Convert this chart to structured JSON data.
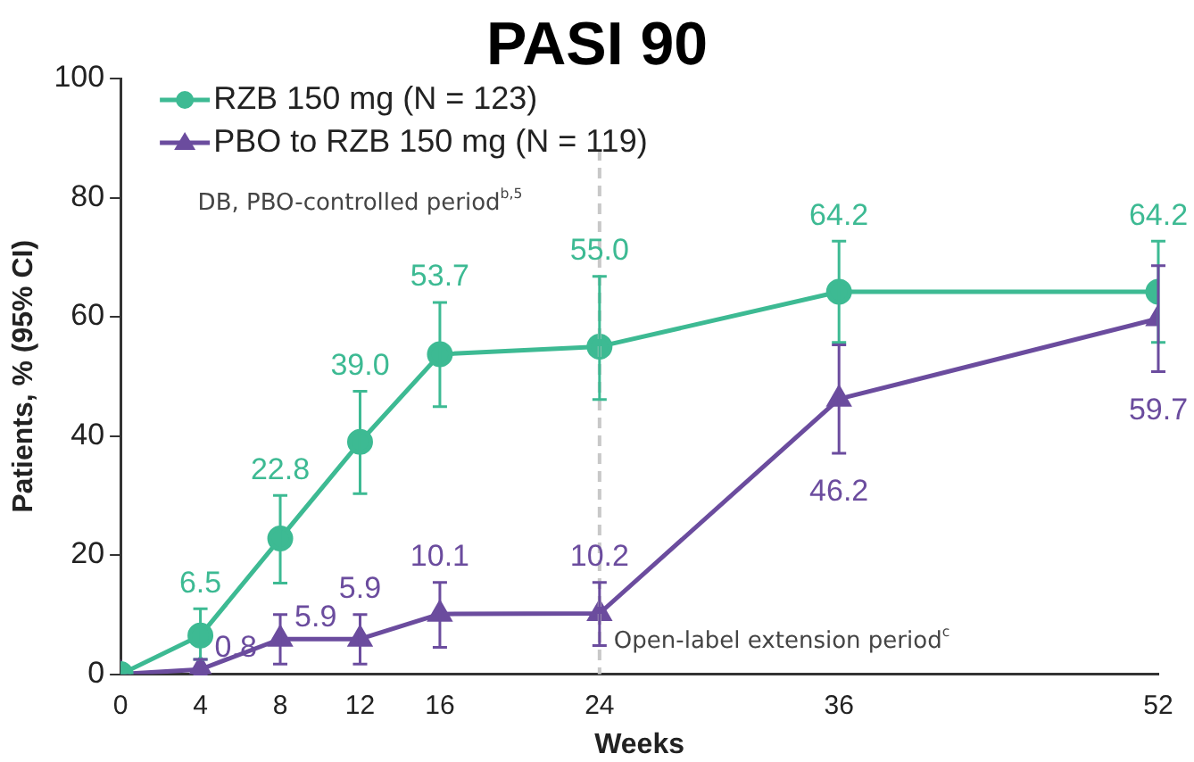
{
  "chart_data": {
    "type": "line",
    "title": "PASI 90",
    "xlabel": "Weeks",
    "ylabel": "Patients, % (95% CI)",
    "x": [
      0,
      4,
      8,
      12,
      16,
      24,
      36,
      52
    ],
    "series": [
      {
        "name": "RZB 150 mg (N = 123)",
        "color": "#3dba93",
        "marker": "circle",
        "values": [
          0,
          6.5,
          22.8,
          39.0,
          53.7,
          55.0,
          64.2,
          64.2
        ],
        "value_labels": [
          null,
          "6.5",
          "22.8",
          "39.0",
          "53.7",
          "55.0",
          "64.2",
          "64.2"
        ],
        "errors": [
          null,
          [
            2.5,
            11
          ],
          [
            15.3,
            30
          ],
          [
            30.3,
            47.5
          ],
          [
            44.9,
            62.4
          ],
          [
            46.1,
            66.8
          ],
          [
            55.7,
            72.7
          ],
          [
            55.7,
            72.7
          ]
        ]
      },
      {
        "name": "PBO to RZB 150 mg (N = 119)",
        "color": "#6b4c9e",
        "marker": "triangle",
        "values": [
          0,
          0.8,
          5.9,
          5.9,
          10.1,
          10.2,
          46.2,
          59.7
        ],
        "value_labels": [
          null,
          "0.8",
          "5.9",
          "5.9",
          "10.1",
          "10.2",
          "46.2",
          "59.7"
        ],
        "errors": [
          null,
          [
            0,
            2.5
          ],
          [
            1.7,
            10
          ],
          [
            1.7,
            10
          ],
          [
            4.5,
            15.4
          ],
          [
            4.8,
            15.4
          ],
          [
            37.1,
            55.3
          ],
          [
            50.8,
            68.6
          ]
        ]
      }
    ],
    "xlim": [
      0,
      52
    ],
    "xticks": [
      0,
      4,
      8,
      12,
      16,
      24,
      36,
      52
    ],
    "ylim": [
      0,
      100
    ],
    "yticks": [
      0,
      20,
      40,
      60,
      80,
      100
    ],
    "grid": false,
    "legend": "top left",
    "ref_lines": [
      {
        "axis": "x",
        "value": 24,
        "color": "#c8c8c8",
        "line_style": "dashed"
      }
    ],
    "annotations": [
      "DB, PBO-controlled period$^{b,5}$",
      "Open-label extension period$^{c}$"
    ]
  }
}
